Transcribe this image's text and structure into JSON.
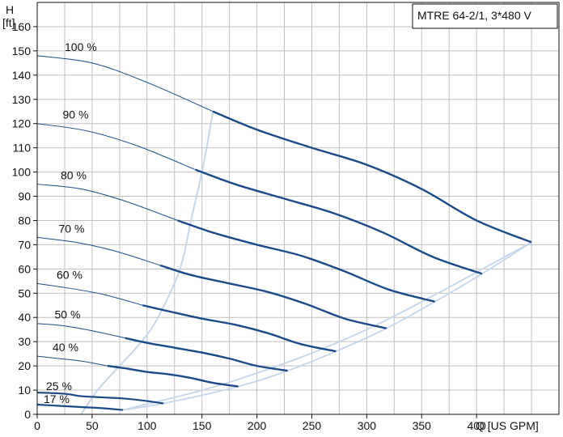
{
  "chart_data": {
    "type": "line",
    "title": "MTRE 64-2/1, 3*480 V",
    "xlabel": "Q [US GPM]",
    "ylabel": [
      "H",
      "[ft]"
    ],
    "xlim": [
      0,
      475
    ],
    "ylim": [
      0,
      170
    ],
    "xticks": [
      0,
      50,
      100,
      150,
      200,
      250,
      300,
      350,
      400
    ],
    "yticks": [
      0,
      10,
      20,
      30,
      40,
      50,
      60,
      70,
      80,
      90,
      100,
      110,
      120,
      130,
      140,
      150,
      160
    ],
    "grid": true,
    "legend_position": "top-right",
    "colors": {
      "curve": "#1a4b88",
      "boundary": "#c5d6ea",
      "grid": "#c0c0c0"
    },
    "series": [
      {
        "name": "100 %",
        "speed": 1.0,
        "values": [
          [
            0,
            148
          ],
          [
            50,
            145
          ],
          [
            100,
            137
          ],
          [
            160,
            125
          ],
          [
            200,
            117.5
          ],
          [
            250,
            110
          ],
          [
            300,
            103
          ],
          [
            350,
            93
          ],
          [
            400,
            80
          ],
          [
            450,
            71
          ]
        ]
      },
      {
        "name": "90 %",
        "speed": 0.9,
        "values": [
          [
            0,
            120
          ],
          [
            45,
            117
          ],
          [
            90,
            111
          ],
          [
            144,
            101
          ],
          [
            180,
            95
          ],
          [
            225,
            89
          ],
          [
            270,
            83
          ],
          [
            315,
            75
          ],
          [
            360,
            65
          ],
          [
            405,
            58
          ]
        ]
      },
      {
        "name": "80 %",
        "speed": 0.8,
        "values": [
          [
            0,
            95
          ],
          [
            40,
            93
          ],
          [
            80,
            88
          ],
          [
            128,
            80
          ],
          [
            160,
            75
          ],
          [
            200,
            70
          ],
          [
            240,
            65.5
          ],
          [
            280,
            59
          ],
          [
            320,
            51.5
          ],
          [
            362,
            46.5
          ]
        ]
      },
      {
        "name": "70 %",
        "speed": 0.7,
        "values": [
          [
            0,
            73
          ],
          [
            35,
            71
          ],
          [
            70,
            67.5
          ],
          [
            112,
            61.5
          ],
          [
            140,
            57.5
          ],
          [
            175,
            54
          ],
          [
            210,
            50.5
          ],
          [
            245,
            45.5
          ],
          [
            280,
            39.5
          ],
          [
            318,
            35.5
          ]
        ]
      },
      {
        "name": "60 %",
        "speed": 0.6,
        "values": [
          [
            0,
            54
          ],
          [
            30,
            52
          ],
          [
            60,
            49.5
          ],
          [
            96,
            45
          ],
          [
            120,
            42.5
          ],
          [
            150,
            39.5
          ],
          [
            180,
            37
          ],
          [
            210,
            33.5
          ],
          [
            240,
            29
          ],
          [
            272,
            26
          ]
        ]
      },
      {
        "name": "50 %",
        "speed": 0.5,
        "values": [
          [
            0,
            37.5
          ],
          [
            25,
            36.5
          ],
          [
            50,
            34.5
          ],
          [
            80,
            31.5
          ],
          [
            100,
            29.5
          ],
          [
            125,
            27.5
          ],
          [
            150,
            25.5
          ],
          [
            175,
            23
          ],
          [
            200,
            20
          ],
          [
            228,
            18
          ]
        ]
      },
      {
        "name": "40 %",
        "speed": 0.4,
        "values": [
          [
            0,
            24
          ],
          [
            20,
            23
          ],
          [
            40,
            22
          ],
          [
            64,
            20
          ],
          [
            80,
            19
          ],
          [
            100,
            17.5
          ],
          [
            120,
            16.5
          ],
          [
            140,
            15
          ],
          [
            160,
            13
          ],
          [
            183,
            11.5
          ]
        ]
      },
      {
        "name": "25 %",
        "speed": 0.25,
        "values": [
          [
            0,
            9
          ],
          [
            25,
            8.5
          ],
          [
            40,
            7.5
          ],
          [
            60,
            7
          ],
          [
            80,
            6.5
          ],
          [
            100,
            5.5
          ],
          [
            115,
            4.5
          ]
        ]
      },
      {
        "name": "17 %",
        "speed": 0.17,
        "values": [
          [
            0,
            4
          ],
          [
            20,
            3.5
          ],
          [
            40,
            3
          ],
          [
            60,
            2.5
          ],
          [
            78,
            1.8
          ]
        ]
      }
    ],
    "boundary_lines": [
      {
        "name": "",
        "values": [
          [
            40,
            0
          ],
          [
            55,
            10
          ],
          [
            75,
            20
          ],
          [
            95,
            30
          ],
          [
            110,
            40
          ],
          [
            130,
            60
          ],
          [
            140,
            80
          ],
          [
            150,
            100
          ],
          [
            155,
            112
          ],
          [
            160,
            125
          ]
        ]
      },
      {
        "name": "",
        "values": [
          [
            78,
            1.8
          ],
          [
            115,
            4.5
          ],
          [
            183,
            11.5
          ],
          [
            228,
            18
          ],
          [
            272,
            26
          ],
          [
            318,
            35.5
          ],
          [
            362,
            46.5
          ],
          [
            405,
            58
          ],
          [
            450,
            71
          ]
        ]
      },
      {
        "name": "",
        "values": [
          [
            78,
            1.8
          ],
          [
            180,
            14
          ],
          [
            300,
            35
          ],
          [
            450,
            71
          ]
        ]
      }
    ]
  }
}
